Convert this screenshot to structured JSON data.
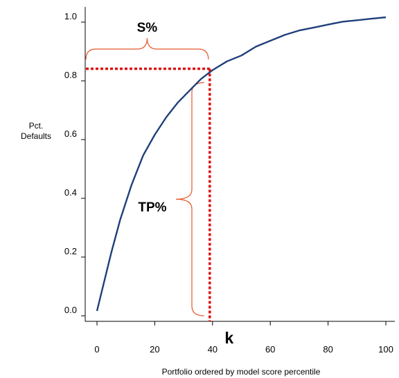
{
  "chart_data": {
    "type": "line",
    "title": "",
    "xlabel": "Portfolio ordered by model score percentile",
    "ylabel": [
      "Pct.",
      "Defaults"
    ],
    "xlim": [
      0,
      100
    ],
    "ylim": [
      0,
      1.0
    ],
    "x_ticks": [
      {
        "value": 0,
        "label": "0"
      },
      {
        "value": 20,
        "label": "20"
      },
      {
        "value": 40,
        "label": "40"
      },
      {
        "value": 60,
        "label": "60"
      },
      {
        "value": 80,
        "label": "80"
      },
      {
        "value": 100,
        "label": "100"
      }
    ],
    "y_ticks": [
      {
        "value": 0.0,
        "label": "0.0"
      },
      {
        "value": 0.2,
        "label": "0.2"
      },
      {
        "value": 0.4,
        "label": "0.4"
      },
      {
        "value": 0.6,
        "label": "0.6"
      },
      {
        "value": 0.8,
        "label": "0.8"
      },
      {
        "value": 1.0,
        "label": "1.0"
      }
    ],
    "grid": false,
    "series": [
      {
        "color": "#1f3f7a",
        "x": [
          0,
          2,
          5,
          8,
          12,
          16,
          20,
          24,
          28,
          32,
          36,
          40,
          45,
          50,
          55,
          60,
          65,
          70,
          75,
          80,
          85,
          90,
          95,
          100
        ],
        "y": [
          0.0,
          0.08,
          0.2,
          0.31,
          0.43,
          0.53,
          0.6,
          0.66,
          0.71,
          0.75,
          0.79,
          0.82,
          0.85,
          0.87,
          0.9,
          0.92,
          0.94,
          0.955,
          0.965,
          0.975,
          0.985,
          0.99,
          0.995,
          1.0
        ]
      }
    ],
    "annotations": {
      "k_value": 40,
      "k_label": "k",
      "cutoff_y": 0.82,
      "s_label": "S%",
      "tp_label": "TP%",
      "cutoff_color": "#dd1111",
      "brace_color": "#e8562a"
    }
  }
}
